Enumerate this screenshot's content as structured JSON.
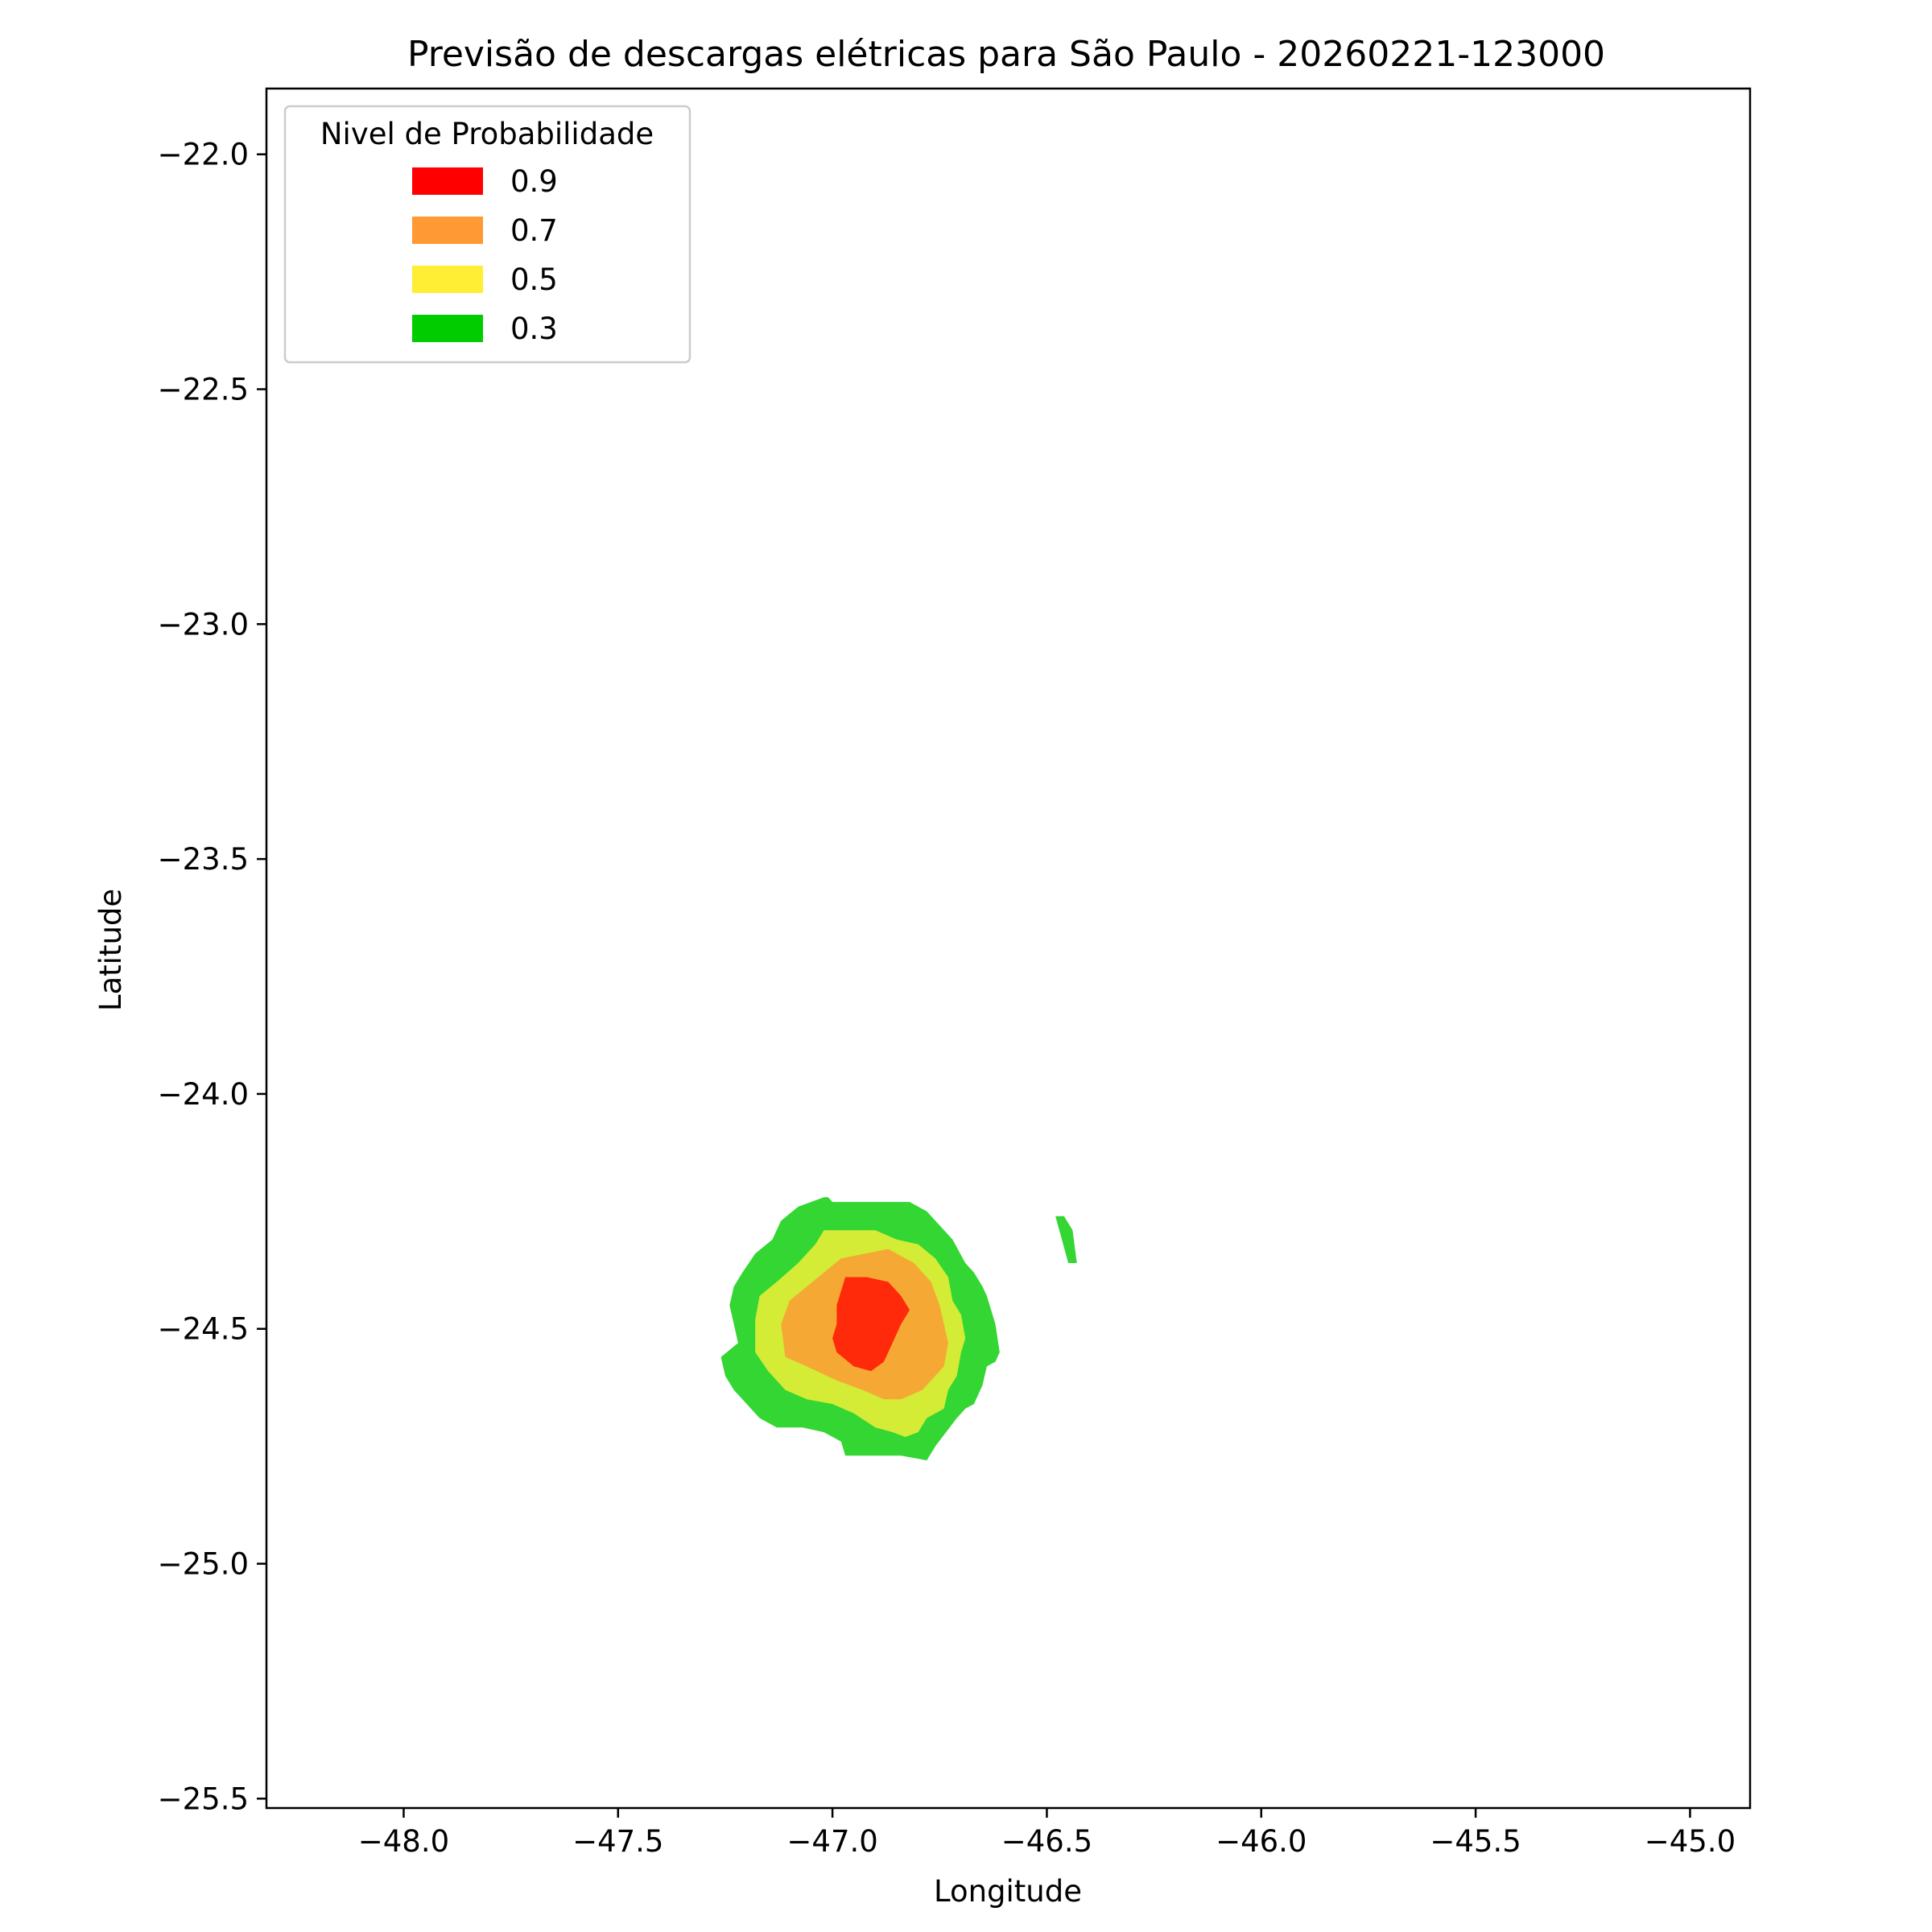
{
  "chart_data": {
    "type": "heatmap",
    "title": "Previsão de descargas elétricas para São Paulo - 20260221-123000",
    "xlabel": "Longitude",
    "ylabel": "Latitude",
    "xlim": [
      -48.32,
      -44.86
    ],
    "ylim": [
      -25.52,
      -21.86
    ],
    "x_ticks": [
      -48.0,
      -47.5,
      -47.0,
      -46.5,
      -46.0,
      -45.5,
      -45.0
    ],
    "x_tick_labels": [
      "−48.0",
      "−47.5",
      "−47.0",
      "−46.5",
      "−46.0",
      "−45.5",
      "−45.0"
    ],
    "y_ticks": [
      -22.0,
      -22.5,
      -23.0,
      -23.5,
      -24.0,
      -24.5,
      -25.0,
      -25.5
    ],
    "y_tick_labels": [
      "−22.0",
      "−22.5",
      "−23.0",
      "−23.5",
      "−24.0",
      "−24.5",
      "−25.0",
      "−25.5"
    ],
    "grid": false,
    "legend": {
      "title": "Nivel de Probabilidade",
      "placement": "upper-left",
      "entries": [
        {
          "label": "0.9",
          "color": "#ff0000"
        },
        {
          "label": "0.7",
          "color": "#ff9933"
        },
        {
          "label": "0.5",
          "color": "#ffee33"
        },
        {
          "label": "0.3",
          "color": "#00cc00"
        }
      ]
    },
    "regions": [
      {
        "level": "0.3",
        "color": "#33d633",
        "points": [
          [
            -47.02,
            -24.22
          ],
          [
            -47.01,
            -24.22
          ],
          [
            -47.0,
            -24.23
          ],
          [
            -46.82,
            -24.23
          ],
          [
            -46.78,
            -24.25
          ],
          [
            -46.72,
            -24.31
          ],
          [
            -46.69,
            -24.36
          ],
          [
            -46.67,
            -24.38
          ],
          [
            -46.65,
            -24.41
          ],
          [
            -46.64,
            -24.43
          ],
          [
            -46.62,
            -24.49
          ],
          [
            -46.61,
            -24.55
          ],
          [
            -46.62,
            -24.57
          ],
          [
            -46.64,
            -24.58
          ],
          [
            -46.65,
            -24.62
          ],
          [
            -46.67,
            -24.66
          ],
          [
            -46.69,
            -24.67
          ],
          [
            -46.71,
            -24.69
          ],
          [
            -46.76,
            -24.75
          ],
          [
            -46.78,
            -24.78
          ],
          [
            -46.84,
            -24.77
          ],
          [
            -46.97,
            -24.77
          ],
          [
            -46.98,
            -24.74
          ],
          [
            -47.02,
            -24.72
          ],
          [
            -47.07,
            -24.71
          ],
          [
            -47.13,
            -24.71
          ],
          [
            -47.17,
            -24.69
          ],
          [
            -47.2,
            -24.66
          ],
          [
            -47.23,
            -24.63
          ],
          [
            -47.25,
            -24.6
          ],
          [
            -47.26,
            -24.56
          ],
          [
            -47.22,
            -24.53
          ],
          [
            -47.24,
            -24.45
          ],
          [
            -47.23,
            -24.41
          ],
          [
            -47.21,
            -24.38
          ],
          [
            -47.18,
            -24.34
          ],
          [
            -47.14,
            -24.31
          ],
          [
            -47.12,
            -24.27
          ],
          [
            -47.08,
            -24.24
          ]
        ]
      },
      {
        "level": "0.3",
        "color": "#33d633",
        "points": [
          [
            -46.48,
            -24.26
          ],
          [
            -46.46,
            -24.26
          ],
          [
            -46.44,
            -24.29
          ],
          [
            -46.43,
            -24.36
          ],
          [
            -46.45,
            -24.36
          ]
        ]
      },
      {
        "level": "0.5",
        "color": "#d4ec36",
        "points": [
          [
            -47.02,
            -24.29
          ],
          [
            -46.9,
            -24.29
          ],
          [
            -46.85,
            -24.31
          ],
          [
            -46.8,
            -24.32
          ],
          [
            -46.76,
            -24.35
          ],
          [
            -46.73,
            -24.39
          ],
          [
            -46.72,
            -24.44
          ],
          [
            -46.7,
            -24.47
          ],
          [
            -46.69,
            -24.52
          ],
          [
            -46.7,
            -24.55
          ],
          [
            -46.71,
            -24.6
          ],
          [
            -46.73,
            -24.63
          ],
          [
            -46.74,
            -24.67
          ],
          [
            -46.78,
            -24.69
          ],
          [
            -46.8,
            -24.72
          ],
          [
            -46.83,
            -24.73
          ],
          [
            -46.86,
            -24.72
          ],
          [
            -46.9,
            -24.71
          ],
          [
            -46.95,
            -24.68
          ],
          [
            -47.0,
            -24.66
          ],
          [
            -47.06,
            -24.65
          ],
          [
            -47.11,
            -24.63
          ],
          [
            -47.15,
            -24.59
          ],
          [
            -47.18,
            -24.55
          ],
          [
            -47.18,
            -24.48
          ],
          [
            -47.17,
            -24.43
          ],
          [
            -47.13,
            -24.4
          ],
          [
            -47.08,
            -24.36
          ],
          [
            -47.04,
            -24.32
          ]
        ]
      },
      {
        "level": "0.7",
        "color": "#f6a834",
        "points": [
          [
            -46.98,
            -24.35
          ],
          [
            -46.87,
            -24.33
          ],
          [
            -46.81,
            -24.36
          ],
          [
            -46.77,
            -24.4
          ],
          [
            -46.75,
            -24.45
          ],
          [
            -46.73,
            -24.53
          ],
          [
            -46.74,
            -24.58
          ],
          [
            -46.76,
            -24.6
          ],
          [
            -46.79,
            -24.63
          ],
          [
            -46.84,
            -24.65
          ],
          [
            -46.88,
            -24.65
          ],
          [
            -46.93,
            -24.63
          ],
          [
            -46.99,
            -24.61
          ],
          [
            -47.06,
            -24.58
          ],
          [
            -47.11,
            -24.56
          ],
          [
            -47.12,
            -24.49
          ],
          [
            -47.1,
            -24.44
          ],
          [
            -47.06,
            -24.41
          ],
          [
            -47.02,
            -24.38
          ]
        ]
      },
      {
        "level": "0.9",
        "color": "#fe2a09",
        "points": [
          [
            -46.97,
            -24.39
          ],
          [
            -46.92,
            -24.39
          ],
          [
            -46.87,
            -24.4
          ],
          [
            -46.84,
            -24.43
          ],
          [
            -46.82,
            -24.46
          ],
          [
            -46.84,
            -24.49
          ],
          [
            -46.86,
            -24.53
          ],
          [
            -46.88,
            -24.57
          ],
          [
            -46.91,
            -24.59
          ],
          [
            -46.95,
            -24.58
          ],
          [
            -46.99,
            -24.55
          ],
          [
            -47.0,
            -24.52
          ],
          [
            -46.99,
            -24.49
          ],
          [
            -46.99,
            -24.45
          ]
        ]
      }
    ]
  }
}
